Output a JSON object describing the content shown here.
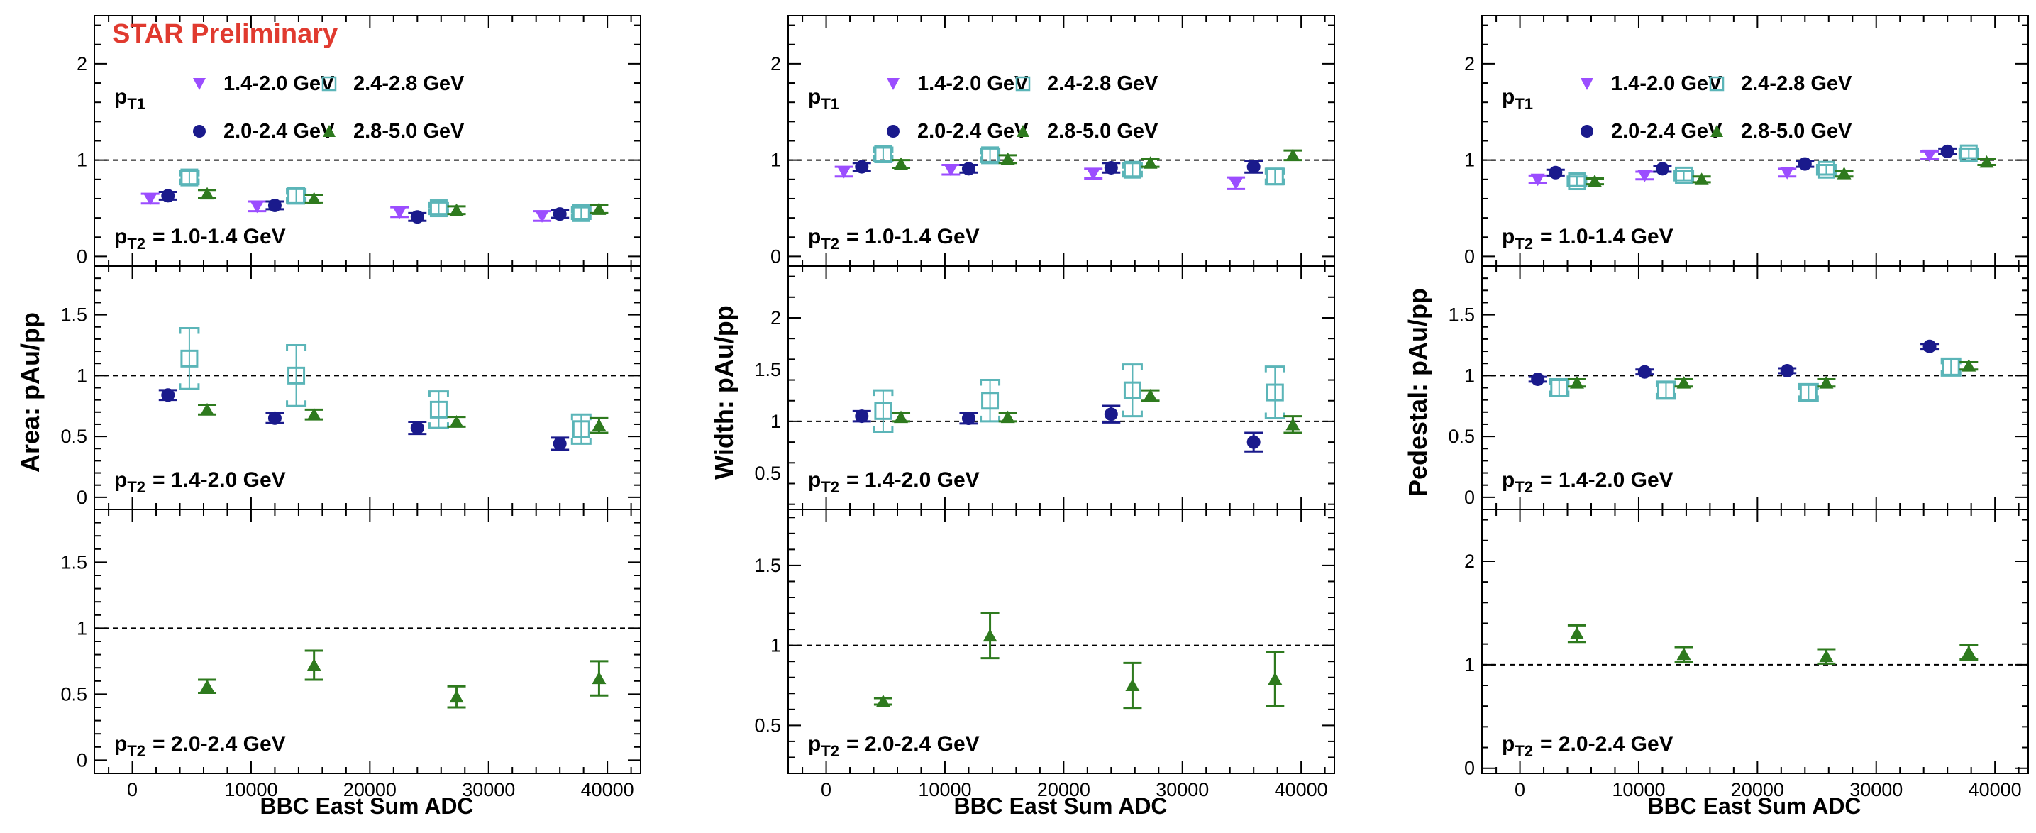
{
  "figure": {
    "watermark": "STAR Preliminary",
    "xlabel": "BBC East Sum ADC",
    "ylabels": [
      "Area: pAu/pp",
      "Width: pAu/pp",
      "Pedestal: pAu/pp"
    ],
    "pt1_label": "p",
    "pt1_sub": "T1",
    "pt2_label": "p",
    "pt2_sub": "T2",
    "pt2_bins": [
      "= 1.0-1.4 GeV",
      "= 1.4-2.0 GeV",
      "= 2.0-2.4 GeV"
    ],
    "legend": [
      {
        "label": "1.4-2.0 GeV",
        "marker": "triangle-down",
        "color": "#9b4dff"
      },
      {
        "label": "2.4-2.8 GeV",
        "marker": "open-square",
        "color": "#5bb5b8"
      },
      {
        "label": "2.0-2.4 GeV",
        "marker": "circle",
        "color": "#1a1a8c"
      },
      {
        "label": "2.8-5.0 GeV",
        "marker": "triangle-up",
        "color": "#2e7a1e"
      }
    ],
    "x_ticks": [
      "0",
      "10000",
      "20000",
      "30000",
      "40000"
    ]
  },
  "colors": {
    "s1": "#9b4dff",
    "s2": "#1a1a8c",
    "s3": "#5bb5b8",
    "s4": "#2e7a1e",
    "watermark": "#e03a2f"
  },
  "chart_data": [
    {
      "type": "scatter",
      "observable": "Area",
      "pt2_bin": "1.0-1.4 GeV",
      "ylim": [
        -0.1,
        2.5
      ],
      "y_ticks": [
        "0",
        "1",
        "2"
      ],
      "reference_line": 1,
      "series": [
        {
          "name": "1.4-2.0 GeV",
          "x": [
            1500,
            10500,
            22500,
            34500
          ],
          "y": [
            0.6,
            0.52,
            0.46,
            0.42
          ],
          "err": [
            0.05,
            0.05,
            0.05,
            0.05
          ]
        },
        {
          "name": "2.0-2.4 GeV",
          "x": [
            3000,
            12000,
            24000,
            36000
          ],
          "y": [
            0.63,
            0.53,
            0.41,
            0.44
          ],
          "err": [
            0.04,
            0.04,
            0.04,
            0.04
          ]
        },
        {
          "name": "2.4-2.8 GeV",
          "x": [
            4800,
            13800,
            25800,
            37800
          ],
          "y": [
            0.82,
            0.63,
            0.5,
            0.45
          ],
          "err": [
            0.07,
            0.07,
            0.06,
            0.06
          ]
        },
        {
          "name": "2.8-5.0 GeV",
          "x": [
            6300,
            15300,
            27300,
            39300
          ],
          "y": [
            0.65,
            0.6,
            0.48,
            0.49
          ],
          "err": [
            0.04,
            0.04,
            0.04,
            0.04
          ]
        }
      ]
    },
    {
      "type": "scatter",
      "observable": "Width",
      "pt2_bin": "1.0-1.4 GeV",
      "ylim": [
        -0.1,
        2.5
      ],
      "y_ticks": [
        "0",
        "1",
        "2"
      ],
      "reference_line": 1,
      "series": [
        {
          "name": "1.4-2.0 GeV",
          "x": [
            1500,
            10500,
            22500,
            34500
          ],
          "y": [
            0.88,
            0.9,
            0.86,
            0.76
          ],
          "err": [
            0.05,
            0.05,
            0.05,
            0.06
          ]
        },
        {
          "name": "2.0-2.4 GeV",
          "x": [
            3000,
            12000,
            24000,
            36000
          ],
          "y": [
            0.93,
            0.91,
            0.92,
            0.93
          ],
          "err": [
            0.04,
            0.04,
            0.05,
            0.06
          ]
        },
        {
          "name": "2.4-2.8 GeV",
          "x": [
            4800,
            13800,
            25800,
            37800
          ],
          "y": [
            1.06,
            1.05,
            0.9,
            0.83
          ],
          "err": [
            0.07,
            0.07,
            0.07,
            0.08
          ]
        },
        {
          "name": "2.8-5.0 GeV",
          "x": [
            6300,
            15300,
            27300,
            39300
          ],
          "y": [
            0.96,
            1.01,
            0.97,
            1.05
          ],
          "err": [
            0.04,
            0.04,
            0.04,
            0.05
          ]
        }
      ]
    },
    {
      "type": "scatter",
      "observable": "Pedestal",
      "pt2_bin": "1.0-1.4 GeV",
      "ylim": [
        -0.1,
        2.5
      ],
      "y_ticks": [
        "0",
        "1",
        "2"
      ],
      "reference_line": 1,
      "series": [
        {
          "name": "1.4-2.0 GeV",
          "x": [
            1500,
            10500,
            22500,
            34500
          ],
          "y": [
            0.8,
            0.84,
            0.87,
            1.05
          ],
          "err": [
            0.04,
            0.04,
            0.04,
            0.04
          ]
        },
        {
          "name": "2.0-2.4 GeV",
          "x": [
            3000,
            12000,
            24000,
            36000
          ],
          "y": [
            0.87,
            0.91,
            0.96,
            1.09
          ],
          "err": [
            0.03,
            0.03,
            0.03,
            0.03
          ]
        },
        {
          "name": "2.4-2.8 GeV",
          "x": [
            4800,
            13800,
            25800,
            37800
          ],
          "y": [
            0.78,
            0.84,
            0.9,
            1.07
          ],
          "err": [
            0.05,
            0.05,
            0.05,
            0.05
          ]
        },
        {
          "name": "2.8-5.0 GeV",
          "x": [
            6300,
            15300,
            27300,
            39300
          ],
          "y": [
            0.78,
            0.8,
            0.86,
            0.98
          ],
          "err": [
            0.03,
            0.03,
            0.03,
            0.03
          ]
        }
      ]
    },
    {
      "type": "scatter",
      "observable": "Area",
      "pt2_bin": "1.4-2.0 GeV",
      "ylim": [
        -0.1,
        1.9
      ],
      "y_ticks": [
        "0",
        "0.5",
        "1",
        "1.5"
      ],
      "reference_line": 1,
      "series": [
        {
          "name": "2.0-2.4 GeV",
          "x": [
            3000,
            12000,
            24000,
            36000
          ],
          "y": [
            0.84,
            0.65,
            0.57,
            0.44
          ],
          "err": [
            0.04,
            0.04,
            0.05,
            0.05
          ]
        },
        {
          "name": "2.4-2.8 GeV",
          "x": [
            4800,
            13800,
            25800,
            37800
          ],
          "y": [
            1.14,
            1.0,
            0.72,
            0.56
          ],
          "err": [
            0.25,
            0.25,
            0.15,
            0.12
          ]
        },
        {
          "name": "2.8-5.0 GeV",
          "x": [
            6300,
            15300,
            27300,
            39300
          ],
          "y": [
            0.72,
            0.68,
            0.62,
            0.59
          ],
          "err": [
            0.04,
            0.04,
            0.04,
            0.06
          ]
        }
      ]
    },
    {
      "type": "scatter",
      "observable": "Width",
      "pt2_bin": "1.4-2.0 GeV",
      "ylim": [
        0.15,
        2.5
      ],
      "y_ticks": [
        "0.5",
        "1",
        "1.5",
        "2"
      ],
      "reference_line": 1,
      "series": [
        {
          "name": "2.0-2.4 GeV",
          "x": [
            3000,
            12000,
            24000,
            36000
          ],
          "y": [
            1.05,
            1.03,
            1.07,
            0.8
          ],
          "err": [
            0.05,
            0.05,
            0.08,
            0.09
          ]
        },
        {
          "name": "2.4-2.8 GeV",
          "x": [
            4800,
            13800,
            25800,
            37800
          ],
          "y": [
            1.1,
            1.2,
            1.3,
            1.28
          ],
          "err": [
            0.2,
            0.2,
            0.25,
            0.25
          ]
        },
        {
          "name": "2.8-5.0 GeV",
          "x": [
            6300,
            15300,
            27300,
            39300
          ],
          "y": [
            1.04,
            1.04,
            1.25,
            0.97
          ],
          "err": [
            0.04,
            0.04,
            0.05,
            0.08
          ]
        }
      ]
    },
    {
      "type": "scatter",
      "observable": "Pedestal",
      "pt2_bin": "1.4-2.0 GeV",
      "ylim": [
        -0.1,
        1.9
      ],
      "y_ticks": [
        "0",
        "0.5",
        "1",
        "1.5"
      ],
      "reference_line": 1,
      "series": [
        {
          "name": "2.0-2.4 GeV",
          "x": [
            1500,
            10500,
            22500,
            34500
          ],
          "y": [
            0.97,
            1.03,
            1.04,
            1.24
          ],
          "err": [
            0.02,
            0.02,
            0.02,
            0.02
          ]
        },
        {
          "name": "2.4-2.8 GeV",
          "x": [
            3300,
            12300,
            24300,
            36300
          ],
          "y": [
            0.9,
            0.88,
            0.86,
            1.07
          ],
          "err": [
            0.07,
            0.07,
            0.07,
            0.07
          ]
        },
        {
          "name": "2.8-5.0 GeV",
          "x": [
            4800,
            13800,
            25800,
            37800
          ],
          "y": [
            0.94,
            0.94,
            0.94,
            1.08
          ],
          "err": [
            0.03,
            0.03,
            0.03,
            0.03
          ]
        }
      ]
    },
    {
      "type": "scatter",
      "observable": "Area",
      "pt2_bin": "2.0-2.4 GeV",
      "ylim": [
        -0.1,
        1.9
      ],
      "y_ticks": [
        "0",
        "0.5",
        "1",
        "1.5"
      ],
      "reference_line": 1,
      "series": [
        {
          "name": "2.8-5.0 GeV",
          "x": [
            6300,
            15300,
            27300,
            39300
          ],
          "y": [
            0.56,
            0.72,
            0.48,
            0.62
          ],
          "err": [
            0.05,
            0.11,
            0.08,
            0.13
          ]
        }
      ]
    },
    {
      "type": "scatter",
      "observable": "Width",
      "pt2_bin": "2.0-2.4 GeV",
      "ylim": [
        0.2,
        1.85
      ],
      "y_ticks": [
        "0.5",
        "1",
        "1.5"
      ],
      "reference_line": 1,
      "series": [
        {
          "name": "2.8-5.0 GeV",
          "x": [
            4800,
            13800,
            25800,
            37800
          ],
          "y": [
            0.65,
            1.06,
            0.75,
            0.79
          ],
          "err": [
            0.02,
            0.14,
            0.14,
            0.17
          ]
        }
      ]
    },
    {
      "type": "scatter",
      "observable": "Pedestal",
      "pt2_bin": "2.0-2.4 GeV",
      "ylim": [
        -0.05,
        2.5
      ],
      "y_ticks": [
        "0",
        "1",
        "2"
      ],
      "reference_line": 1,
      "series": [
        {
          "name": "2.8-5.0 GeV",
          "x": [
            4800,
            13800,
            25800,
            37800
          ],
          "y": [
            1.3,
            1.1,
            1.08,
            1.12
          ],
          "err": [
            0.08,
            0.07,
            0.07,
            0.07
          ]
        }
      ]
    }
  ]
}
